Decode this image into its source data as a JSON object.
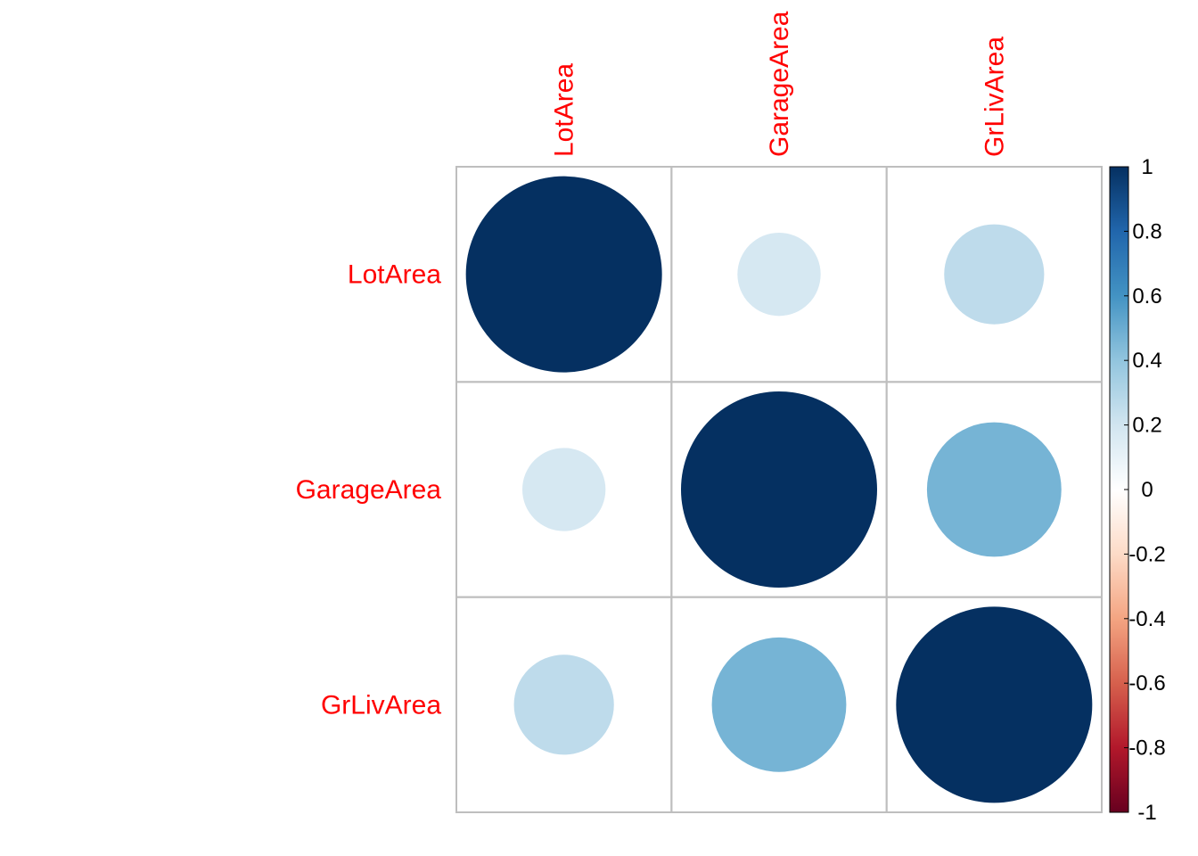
{
  "chart_data": {
    "type": "heatmap",
    "variables": [
      "LotArea",
      "GarageArea",
      "GrLivArea"
    ],
    "matrix": [
      [
        1.0,
        0.18,
        0.26
      ],
      [
        0.18,
        1.0,
        0.47
      ],
      [
        0.26,
        0.47,
        1.0
      ]
    ],
    "colorbar": {
      "range": [
        -1,
        1
      ],
      "ticks": [
        "1",
        "0.8",
        "0.6",
        "0.4",
        "0.2",
        "0",
        "-0.2",
        "-0.4",
        "-0.6",
        "-0.8",
        "-1"
      ],
      "tick_values": [
        1,
        0.8,
        0.6,
        0.4,
        0.2,
        0,
        -0.2,
        -0.4,
        -0.6,
        -0.8,
        -1
      ],
      "colors": [
        "#67001f",
        "#b2182b",
        "#d6604d",
        "#f4a582",
        "#fddbc7",
        "#ffffff",
        "#d1e5f0",
        "#92c5de",
        "#4393c3",
        "#2166ac",
        "#053061"
      ]
    },
    "label_color": "#ff0000",
    "grid_color": "#bebebe"
  }
}
